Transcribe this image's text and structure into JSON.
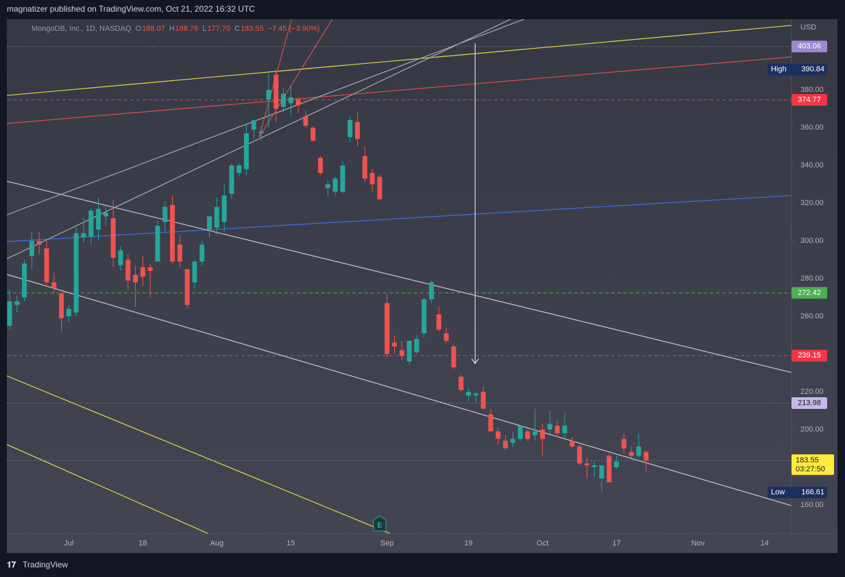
{
  "published": "magnatizer published on TradingView.com, Oct 21, 2022 16:32 UTC",
  "brand": "TradingView",
  "chart_data": {
    "type": "candlestick",
    "title": "MongoDB, Inc., 1D, NASDAQ",
    "header_fields": [
      {
        "label": "O",
        "value": "188.07"
      },
      {
        "label": "H",
        "value": "188.76"
      },
      {
        "label": "L",
        "value": "177.70"
      },
      {
        "label": "C",
        "value": "183.55"
      }
    ],
    "change": "−7.45 (−3.90%)",
    "currency": "USD",
    "up_color": "#26a69a",
    "down_color": "#ef5350",
    "grid": false,
    "open": [
      255,
      266,
      270,
      292,
      300,
      296,
      278,
      272,
      260,
      262,
      302,
      302,
      306,
      313,
      312,
      287,
      290,
      282,
      286,
      286,
      289,
      310,
      319,
      298,
      285,
      278,
      289,
      306,
      307,
      310,
      325,
      336,
      338,
      359,
      357,
      375,
      388,
      371,
      373,
      375,
      366,
      360,
      344,
      328,
      326,
      326,
      355,
      363,
      345,
      336,
      334,
      267,
      246,
      242,
      236,
      241,
      251,
      269,
      261,
      251,
      244,
      228,
      218,
      218,
      220,
      208,
      199,
      194,
      193,
      195,
      199,
      197,
      200,
      200,
      202,
      198,
      194,
      191,
      182,
      180,
      174,
      186,
      180,
      195,
      188,
      186,
      188.07
    ],
    "high": [
      274,
      271,
      290,
      305,
      305,
      300,
      283,
      273,
      266,
      308,
      312,
      317,
      323,
      318,
      322,
      297,
      293,
      287,
      292,
      288,
      311,
      321,
      324,
      303,
      285,
      290,
      300,
      313,
      323,
      330,
      341,
      341,
      362,
      364,
      361,
      390,
      390.84,
      381,
      382,
      376,
      369,
      361,
      345,
      332,
      334,
      342,
      366,
      368,
      350,
      338,
      335,
      272,
      250,
      247,
      247,
      250,
      270,
      279,
      265,
      254,
      245,
      229,
      222,
      220,
      223,
      211,
      201,
      197,
      199,
      202,
      200,
      211,
      203,
      210,
      205,
      209,
      196,
      192,
      185,
      183,
      181,
      187,
      186,
      198,
      191,
      198,
      188.76
    ],
    "low": [
      253,
      262,
      268,
      285,
      293,
      276,
      272,
      252,
      257,
      260,
      299,
      298,
      300,
      308,
      286,
      284,
      274,
      265,
      276,
      270,
      289,
      305,
      288,
      286,
      264,
      275,
      287,
      302,
      303,
      305,
      322,
      334,
      335,
      354,
      353,
      360,
      363,
      368,
      366,
      368,
      360,
      353,
      335,
      324,
      324,
      325,
      352,
      350,
      331,
      326,
      322,
      238,
      240,
      237,
      234,
      240,
      249,
      267,
      252,
      246,
      232,
      220,
      215,
      214,
      211,
      199,
      192,
      189,
      191,
      194,
      194,
      194,
      186,
      198,
      196,
      195,
      190,
      181,
      174,
      175,
      167,
      172,
      179,
      187,
      185,
      185,
      177.7
    ],
    "close": [
      268,
      268,
      288,
      300,
      298,
      278,
      275,
      259,
      264,
      304,
      304,
      316,
      317,
      315,
      291,
      295,
      279,
      278,
      281,
      284,
      308,
      318,
      289,
      289,
      266,
      289,
      298,
      313,
      318,
      324,
      340,
      340,
      357,
      364,
      358,
      380,
      370,
      378,
      376,
      372,
      361,
      353,
      336,
      330,
      333,
      340,
      364,
      354,
      333,
      330,
      322,
      240,
      244,
      239,
      247,
      248,
      269,
      278,
      253,
      247,
      233,
      221,
      220,
      219,
      211,
      199,
      195,
      190,
      195,
      202,
      195,
      199,
      195,
      203,
      198,
      202,
      191,
      182,
      181,
      181,
      181,
      172,
      183,
      190,
      186,
      191,
      183.55
    ],
    "xlim": [
      -0.37,
      105.65
    ],
    "xticks": [
      {
        "value": 8,
        "label": "Jul"
      },
      {
        "value": 18,
        "label": "18"
      },
      {
        "value": 28,
        "label": "Aug"
      },
      {
        "value": 38,
        "label": "15"
      },
      {
        "value": 51,
        "label": "Sep"
      },
      {
        "value": 62,
        "label": "19"
      },
      {
        "value": 72,
        "label": "Oct"
      },
      {
        "value": 82,
        "label": "17"
      },
      {
        "value": 93,
        "label": "Nov"
      },
      {
        "value": 102,
        "label": "14"
      }
    ],
    "ylim": [
      144.7,
      417.5
    ],
    "yticks": [
      {
        "value": 160,
        "label": "160.00"
      },
      {
        "value": 180,
        "label": "180.00"
      },
      {
        "value": 200,
        "label": "200.00"
      },
      {
        "value": 220,
        "label": "220.00"
      },
      {
        "value": 240,
        "label": "240.00"
      },
      {
        "value": 260,
        "label": "260.00"
      },
      {
        "value": 280,
        "label": "280.00"
      },
      {
        "value": 300,
        "label": "300.00"
      },
      {
        "value": 320,
        "label": "320.00"
      },
      {
        "value": 340,
        "label": "340.00"
      },
      {
        "value": 360,
        "label": "360.00"
      },
      {
        "value": 380,
        "label": "380.00"
      }
    ],
    "levels": [
      {
        "value": 403.06,
        "color": "#9e9ea6",
        "dash": "dotted",
        "label_bg": "#9c88d4",
        "label_fg": "#ffffff"
      },
      {
        "value": 374.77,
        "color": "#f23645",
        "dash": "dashed",
        "label_bg": "#f23645",
        "label_fg": "#ffffff"
      },
      {
        "value": 272.42,
        "color": "#4caf50",
        "dash": "dashed",
        "label_bg": "#4caf50",
        "label_fg": "#ffffff"
      },
      {
        "value": 239.15,
        "color": "#f23645",
        "dash": "dashed",
        "label_bg": "#f23645",
        "label_fg": "#ffffff"
      },
      {
        "value": 213.98,
        "color": "#9e9ea6",
        "dash": "dotted",
        "label_bg": "#c7b8ea",
        "label_fg": "#131722"
      }
    ],
    "last_price": {
      "value": 183.55,
      "countdown": "03:27:50",
      "color": "#ffeb3b"
    },
    "extremes": [
      {
        "label": "High",
        "value": 390.84
      },
      {
        "label": "Low",
        "value": 166.61
      }
    ],
    "trend_lines": [
      {
        "color": "#e6d84a",
        "from": [
          -0.37,
          377.1
        ],
        "to": [
          105.65,
          414.2
        ]
      },
      {
        "color": "#e04848",
        "from": [
          -0.37,
          362.2
        ],
        "to": [
          105.65,
          397.5
        ]
      },
      {
        "color": "#3d6ee0",
        "from": [
          -0.37,
          299.6
        ],
        "to": [
          105.65,
          324.0
        ]
      },
      {
        "color": "#c8c8cc",
        "from": [
          -0.37,
          331.6
        ],
        "to": [
          105.65,
          230.2
        ]
      },
      {
        "color": "#c8c8cc",
        "from": [
          -0.37,
          282.2
        ],
        "to": [
          105.65,
          159.6
        ]
      },
      {
        "color": "#a8a8ae",
        "from": [
          -0.37,
          313.8
        ],
        "to": [
          69.5,
          417.5
        ]
      },
      {
        "color": "#a8a8ae",
        "from": [
          -0.37,
          290.5
        ],
        "to": [
          67.7,
          417.5
        ]
      },
      {
        "color": "#e04848",
        "from": [
          33.7,
          354.9
        ],
        "to": [
          38.1,
          417.5
        ]
      },
      {
        "color": "#e04848",
        "from": [
          33.7,
          354.9
        ],
        "to": [
          43.6,
          417.5
        ]
      },
      {
        "color": "#e6d84a",
        "from": [
          -0.37,
          228.4
        ],
        "to": [
          51.5,
          144.7
        ]
      },
      {
        "color": "#e6d84a",
        "from": [
          -0.37,
          192.0
        ],
        "to": [
          26.9,
          144.7
        ]
      }
    ],
    "arrows": [
      {
        "color": "#d8d8dc",
        "from": [
          62.9,
          404.7
        ],
        "to": [
          62.9,
          234.9
        ]
      }
    ],
    "earnings_marker": {
      "label": "E",
      "index": 50
    }
  }
}
